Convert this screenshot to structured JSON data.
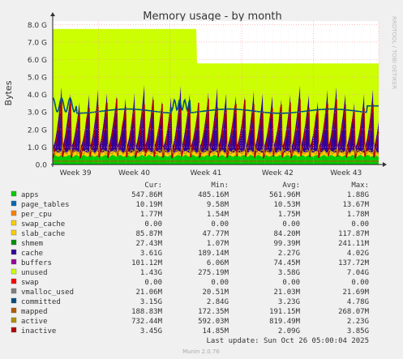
{
  "chart_data": {
    "type": "area",
    "title": "Memory usage - by month",
    "ylabel": "Bytes",
    "side_label": "RRDTOOL / TOBI OETIKER",
    "y_ticks": [
      "0.0",
      "1.0 G",
      "2.0 G",
      "3.0 G",
      "4.0 G",
      "5.0 G",
      "6.0 G",
      "7.0 G",
      "8.0 G"
    ],
    "ylim": [
      0,
      8.2
    ],
    "x_ticks": [
      "Week 39",
      "Week 40",
      "Week 41",
      "Week 42",
      "Week 43"
    ],
    "x_tick_positions": [
      0.14,
      0.36,
      0.58,
      0.8,
      1.0
    ],
    "grid": true,
    "columns": {
      "cur": "Cur:",
      "min": "Min:",
      "avg": "Avg:",
      "max": "Max:"
    },
    "series": [
      {
        "name": "apps",
        "color": "#00cc00",
        "cur": "547.86M",
        "min": "485.16M",
        "avg": "561.96M",
        "max": "1.88G"
      },
      {
        "name": "page_tables",
        "color": "#0066b3",
        "cur": "10.19M",
        "min": "9.58M",
        "avg": "10.53M",
        "max": "13.67M"
      },
      {
        "name": "per_cpu",
        "color": "#ff8000",
        "cur": "1.77M",
        "min": "1.54M",
        "avg": "1.75M",
        "max": "1.78M"
      },
      {
        "name": "swap_cache",
        "color": "#ffcc00",
        "cur": "0.00",
        "min": "0.00",
        "avg": "0.00",
        "max": "0.00"
      },
      {
        "name": "slab_cache",
        "color": "#ffcc00",
        "cur": "85.87M",
        "min": "47.77M",
        "avg": "84.20M",
        "max": "117.87M"
      },
      {
        "name": "shmem",
        "color": "#008f00",
        "cur": "27.43M",
        "min": "1.07M",
        "avg": "99.39M",
        "max": "241.11M"
      },
      {
        "name": "cache",
        "color": "#330099",
        "cur": "3.61G",
        "min": "189.14M",
        "avg": "2.27G",
        "max": "4.02G"
      },
      {
        "name": "buffers",
        "color": "#990099",
        "cur": "101.12M",
        "min": "6.06M",
        "avg": "74.45M",
        "max": "137.72M"
      },
      {
        "name": "unused",
        "color": "#ccff00",
        "cur": "1.43G",
        "min": "275.19M",
        "avg": "3.58G",
        "max": "7.04G"
      },
      {
        "name": "swap",
        "color": "#ff0000",
        "cur": "0.00",
        "min": "0.00",
        "avg": "0.00",
        "max": "0.00"
      },
      {
        "name": "vmalloc_used",
        "color": "#808080",
        "cur": "21.06M",
        "min": "20.51M",
        "avg": "21.03M",
        "max": "21.69M"
      },
      {
        "name": "committed",
        "color": "#004d80",
        "cur": "3.15G",
        "min": "2.84G",
        "avg": "3.23G",
        "max": "4.78G"
      },
      {
        "name": "mapped",
        "color": "#b35a00",
        "cur": "188.83M",
        "min": "172.35M",
        "avg": "191.15M",
        "max": "268.07M"
      },
      {
        "name": "active",
        "color": "#b38f00",
        "cur": "732.44M",
        "min": "592.03M",
        "avg": "819.49M",
        "max": "2.23G"
      },
      {
        "name": "inactive",
        "color": "#b30000",
        "cur": "3.45G",
        "min": "14.85M",
        "avg": "2.09G",
        "max": "3.85G"
      }
    ]
  },
  "footer": {
    "last_update": "Last update:  Sun Oct 26 05:00:04 2025",
    "version": "Munin 2.0.76"
  }
}
